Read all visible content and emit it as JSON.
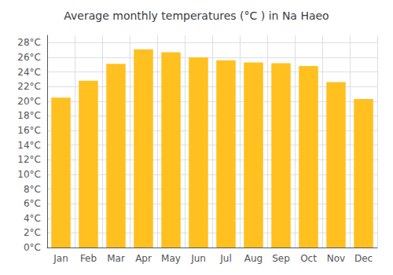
{
  "chart_data": {
    "type": "bar",
    "title": "Average monthly temperatures (°C ) in Na Haeo",
    "categories": [
      "Jan",
      "Feb",
      "Mar",
      "Apr",
      "May",
      "Jun",
      "Jul",
      "Aug",
      "Sep",
      "Oct",
      "Nov",
      "Dec"
    ],
    "values": [
      20.5,
      22.8,
      25.1,
      27.1,
      26.7,
      26.0,
      25.6,
      25.3,
      25.2,
      24.8,
      22.6,
      20.3
    ],
    "color": "#FFC020",
    "ylim": [
      0,
      29
    ],
    "yticks": [
      {
        "value": 0,
        "label": "0°C"
      },
      {
        "value": 2,
        "label": "2°C"
      },
      {
        "value": 4,
        "label": "4°C"
      },
      {
        "value": 6,
        "label": "6°C"
      },
      {
        "value": 8,
        "label": "8°C"
      },
      {
        "value": 10,
        "label": "10°C"
      },
      {
        "value": 12,
        "label": "12°C"
      },
      {
        "value": 14,
        "label": "14°C"
      },
      {
        "value": 16,
        "label": "16°C"
      },
      {
        "value": 18,
        "label": "18°C"
      },
      {
        "value": 20,
        "label": "20°C"
      },
      {
        "value": 22,
        "label": "22°C"
      },
      {
        "value": 24,
        "label": "24°C"
      },
      {
        "value": 26,
        "label": "26°C"
      },
      {
        "value": 28,
        "label": "28°C"
      }
    ],
    "grid": true
  }
}
